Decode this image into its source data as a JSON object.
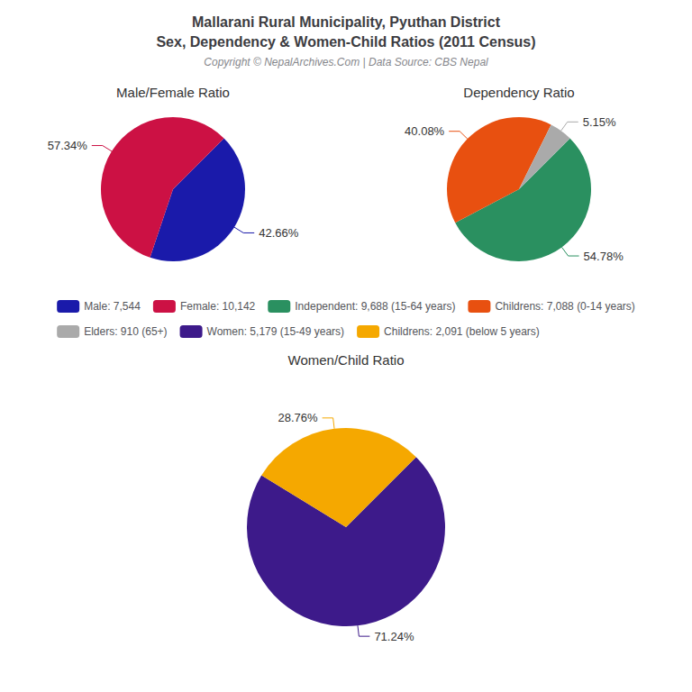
{
  "title": [
    "Mallarani Rural Municipality, Pyuthan District",
    "Sex, Dependency & Women-Child Ratios (2011 Census)"
  ],
  "subtitle": "Copyright © NepalArchives.Com | Data Source: CBS Nepal",
  "legend": "center",
  "chart_data": [
    {
      "type": "pie",
      "title": "Male/Female Ratio",
      "categories": [
        "Male: 7,544",
        "Female: 10,142"
      ],
      "values": [
        42.66,
        57.34
      ],
      "value_labels": [
        "42.66%",
        "57.34%"
      ],
      "colors": [
        "#1a1aaa",
        "#cc1144"
      ],
      "data_labels": true
    },
    {
      "type": "pie",
      "title": "Dependency Ratio",
      "categories": [
        "Independent: 9,688 (15-64 years)",
        "Childrens: 7,088 (0-14 years)",
        "Elders: 910 (65+)"
      ],
      "values": [
        54.78,
        40.08,
        5.15
      ],
      "value_labels": [
        "54.78%",
        "40.08%",
        "5.15%"
      ],
      "colors": [
        "#2a9060",
        "#e85010",
        "#aaaaaa"
      ],
      "data_labels": true
    },
    {
      "type": "pie",
      "title": "Women/Child Ratio",
      "categories": [
        "Women: 5,179 (15-49 years)",
        "Childrens: 2,091 (below 5 years)"
      ],
      "values": [
        71.24,
        28.76
      ],
      "value_labels": [
        "71.24%",
        "28.76%"
      ],
      "colors": [
        "#3d1a8a",
        "#f5a800"
      ],
      "data_labels": true
    }
  ]
}
